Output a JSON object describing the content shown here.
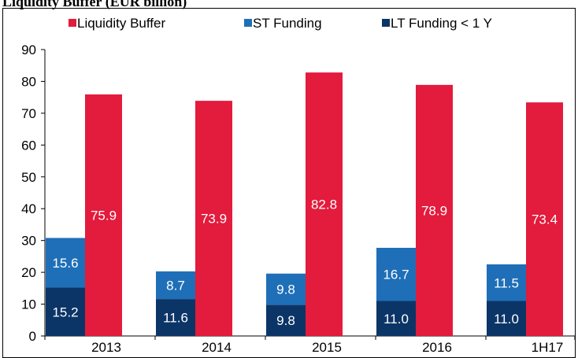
{
  "chart_data": {
    "type": "bar",
    "title": "Liquidity Buffer (EUR billion)",
    "categories": [
      "2013",
      "2014",
      "2015",
      "2016",
      "1H17"
    ],
    "series": [
      {
        "name": "Liquidity Buffer",
        "color": "#e31b3c",
        "values": [
          75.9,
          73.9,
          82.8,
          78.9,
          73.4
        ],
        "value_labels": [
          "75.9",
          "73.9",
          "82.8",
          "78.9",
          "73.4"
        ]
      },
      {
        "name": "ST Funding",
        "color": "#1f6fb8",
        "values": [
          15.6,
          8.7,
          9.8,
          16.7,
          11.5
        ],
        "value_labels": [
          "15.6",
          "8.7",
          "9.8",
          "16.7",
          "11.5"
        ]
      },
      {
        "name": "LT Funding < 1 Y",
        "color": "#0c3567",
        "values": [
          15.2,
          11.6,
          9.8,
          11,
          11
        ],
        "value_labels": [
          "15.2",
          "11.6",
          "9.8",
          "11.0",
          "11.0"
        ]
      }
    ],
    "ylim": [
      0,
      90
    ],
    "yticks": [
      0,
      10,
      20,
      30,
      40,
      50,
      60,
      70,
      80,
      90
    ],
    "legend": "top"
  }
}
